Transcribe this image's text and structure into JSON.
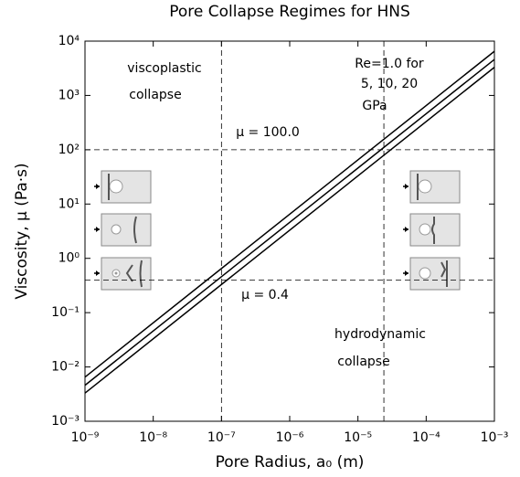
{
  "chart_data": {
    "type": "line",
    "title": "Pore Collapse Regimes for HNS",
    "x_label": "Pore Radius, a₀  (m)",
    "y_label": "Viscosity, μ  (Pa·s)",
    "log_x": true,
    "log_y": true,
    "xlim": [
      1e-09,
      0.001
    ],
    "ylim": [
      0.001,
      10000.0
    ],
    "xticks": [
      {
        "value": 1e-09,
        "label": "10⁻⁹"
      },
      {
        "value": 1e-08,
        "label": "10⁻⁸"
      },
      {
        "value": 1e-07,
        "label": "10⁻⁷"
      },
      {
        "value": 1e-06,
        "label": "10⁻⁶"
      },
      {
        "value": 1e-05,
        "label": "10⁻⁵"
      },
      {
        "value": 0.0001,
        "label": "10⁻⁴"
      },
      {
        "value": 0.001,
        "label": "10⁻³"
      }
    ],
    "yticks": [
      {
        "value": 0.001,
        "label": "10⁻³"
      },
      {
        "value": 0.01,
        "label": "10⁻²"
      },
      {
        "value": 0.1,
        "label": "10⁻¹"
      },
      {
        "value": 1,
        "label": "10⁰"
      },
      {
        "value": 10,
        "label": "10¹"
      },
      {
        "value": 100,
        "label": "10²"
      },
      {
        "value": 1000,
        "label": "10³"
      },
      {
        "value": 10000,
        "label": "10⁴"
      }
    ],
    "series": [
      {
        "color": "#000000",
        "x": [
          1e-09,
          0.001
        ],
        "values": [
          0.0065,
          6500
        ]
      },
      {
        "color": "#000000",
        "x": [
          1e-09,
          0.001
        ],
        "values": [
          0.0046,
          4600
        ]
      },
      {
        "color": "#000000",
        "x": [
          1e-09,
          0.001
        ],
        "values": [
          0.0033,
          3300
        ]
      }
    ],
    "hlines": [
      100,
      0.4
    ],
    "vlines": [
      1e-07,
      2.4e-05
    ],
    "annotations": [
      "viscoplastic",
      "collapse",
      "Re=1.0 for",
      "5, 10, 20",
      "GPa",
      "μ = 100.0",
      "μ = 0.4",
      "hydrodynamic",
      "collapse"
    ]
  }
}
